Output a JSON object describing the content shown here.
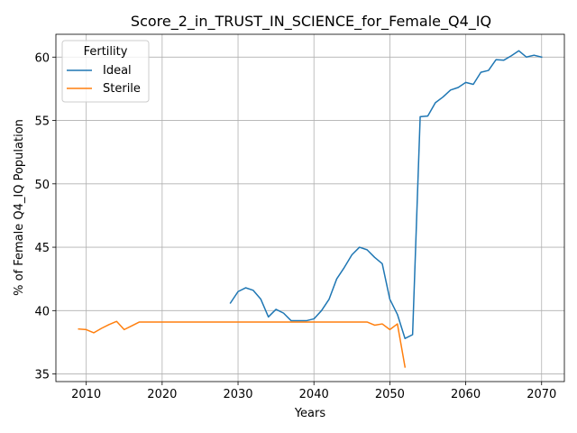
{
  "chart_data": {
    "type": "line",
    "title": "Score_2_in_TRUST_IN_SCIENCE_for_Female_Q4_IQ",
    "xlabel": "Years",
    "ylabel": "% of Female Q4_IQ Population",
    "xlim": [
      2006,
      2073
    ],
    "ylim": [
      34.4,
      61.8
    ],
    "xticks": [
      2010,
      2020,
      2030,
      2040,
      2050,
      2060,
      2070
    ],
    "yticks": [
      35,
      40,
      45,
      50,
      55,
      60
    ],
    "grid": true,
    "legend": {
      "title": "Fertility",
      "position": "top-left"
    },
    "series": [
      {
        "name": "Ideal",
        "color": "#1f77b4",
        "x": [
          2029,
          2030,
          2031,
          2032,
          2033,
          2034,
          2035,
          2036,
          2037,
          2038,
          2039,
          2040,
          2041,
          2042,
          2043,
          2044,
          2045,
          2046,
          2047,
          2048,
          2049,
          2050,
          2051,
          2052,
          2053,
          2054,
          2055,
          2056,
          2057,
          2058,
          2059,
          2060,
          2061,
          2062,
          2063,
          2064,
          2065,
          2066,
          2067,
          2068,
          2069,
          2070
        ],
        "y": [
          40.6,
          41.5,
          41.8,
          41.6,
          40.9,
          39.5,
          40.1,
          39.8,
          39.2,
          39.2,
          39.2,
          39.35,
          40.0,
          40.9,
          42.5,
          43.4,
          44.4,
          45.0,
          44.8,
          44.2,
          43.7,
          40.9,
          39.7,
          37.8,
          38.1,
          55.3,
          55.35,
          56.4,
          56.85,
          57.4,
          57.6,
          58.0,
          57.85,
          58.8,
          58.95,
          59.8,
          59.75,
          60.1,
          60.5,
          60.0,
          60.15,
          60.0
        ]
      },
      {
        "name": "Sterile",
        "color": "#ff7f0e",
        "x": [
          2009,
          2010,
          2011,
          2012,
          2013,
          2014,
          2015,
          2016,
          2017,
          2018,
          2019,
          2020,
          2021,
          2022,
          2023,
          2024,
          2025,
          2026,
          2027,
          2028,
          2029,
          2030,
          2031,
          2032,
          2033,
          2034,
          2035,
          2036,
          2037,
          2038,
          2039,
          2040,
          2041,
          2042,
          2043,
          2044,
          2045,
          2046,
          2047,
          2048,
          2049,
          2050,
          2051,
          2052
        ],
        "y": [
          38.55,
          38.5,
          38.25,
          38.6,
          38.9,
          39.15,
          38.5,
          38.8,
          39.1,
          39.1,
          39.1,
          39.1,
          39.1,
          39.1,
          39.1,
          39.1,
          39.1,
          39.1,
          39.1,
          39.1,
          39.1,
          39.1,
          39.1,
          39.1,
          39.1,
          39.1,
          39.1,
          39.1,
          39.1,
          39.1,
          39.1,
          39.1,
          39.1,
          39.1,
          39.1,
          39.1,
          39.1,
          39.1,
          39.1,
          38.85,
          38.95,
          38.5,
          38.95,
          35.55
        ]
      }
    ]
  }
}
